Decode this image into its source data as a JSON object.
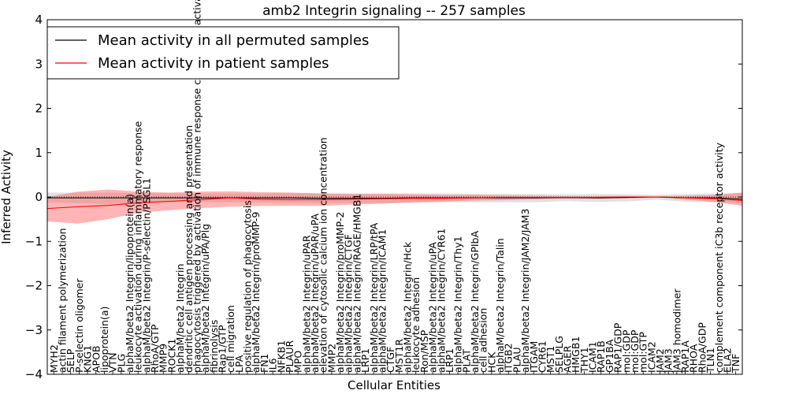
{
  "chart_data": {
    "type": "line",
    "title": "amb2 Integrin signaling -- 257 samples",
    "xlabel": "Cellular Entities",
    "ylabel": "Inferred Activity",
    "ylim": [
      -4,
      4
    ],
    "yticks": [
      -4,
      -3,
      -2,
      -1,
      0,
      1,
      2,
      3,
      4
    ],
    "xlim": [
      0,
      114
    ],
    "grid": false,
    "legend_position": "top-left",
    "legend": [
      {
        "label": "Mean activity in all permuted samples",
        "color": "#000000"
      },
      {
        "label": "Mean activity in patient samples",
        "color": "#ff0000"
      }
    ],
    "categories": [
      "MYH2",
      "actin filament polymerization",
      "SELP",
      "P-selectin oligomer",
      "KNG1",
      "APOB",
      "lipoprotein(a)",
      "VTN",
      "PLG",
      "alphaM/beta2 Integrin/lipoprotein(a)",
      "leukocyte activation during inflammatory response",
      "alphaM/beta2 Integrin/P-selectin/PSGL1",
      "RhoA/GTP",
      "MMP9",
      "ROCK1",
      "alphaM/beta2 Integrin",
      "dendritic cell antigen processing and presentation",
      "phagocytosis triggered by activation of immune response cell surface activating receptor",
      "alphaM/beta2 Integrin/uPA/Plg",
      "fibrinolysis",
      "Rap1/GTP",
      "cell migration",
      "LPA",
      "positive regulation of phagocytosis",
      "alphaM/beta2 Integrin/proMMP-9",
      "FN1",
      "IL6",
      "NFKB1",
      "PLAUR",
      "MPO",
      "alphaM/beta2 Integrin/uPAR",
      "alphaM/beta2 Integrin/uPAR/uPA",
      "elevation of cytosolic calcium ion concentration",
      "MMP2",
      "alphaM/beta2 Integrin/proMMP-2",
      "alphaM/beta2 Integrin/CTGF",
      "alphaM/beta2 Integrin/RAGE/HMGB1",
      "LRP1",
      "alphaM/beta2 Integrin/LRP/tPA",
      "alphaM/beta2 Integrin/ICAM1",
      "CTGF",
      "MST1R",
      "alphaM/beta2 Integrin/Hck",
      "leukocyte adhesion",
      "Ron/MSP",
      "alphaM/beta2 Integrin/uPA",
      "alphaM/beta2 Integrin/CYR61",
      "LRP1",
      "alphaM/beta2 Integrin/Thy1",
      "PLAT",
      "alphaM/beta2 Integrin/GPIbA",
      "cell adhesion",
      "HCK",
      "alphaM/beta2 Integrin/Talin",
      "ITGB2",
      "PLAU",
      "alphaM/beta2 Integrin/JAM2/JAM3",
      "ITGAM",
      "CYR61",
      "MST1",
      "SELPLG",
      "AGER",
      "HMGB1",
      "THY1",
      "ICAM1",
      "RAP1B",
      "GP1BA",
      "RAP1/GDP",
      "mol:GDP",
      "mol:GDP",
      "mol:GTP",
      "ICAM2",
      "JAM2",
      "JAM3",
      "JAM3 homodimer",
      "RAP1A",
      "RHOA",
      "RhoA/GDP",
      "TLN1",
      "complement component iC3b receptor activity",
      "ELA2",
      "TNF"
    ],
    "series": [
      {
        "name": "Mean activity in all permuted samples",
        "color": "#000000",
        "x": [
          0,
          5,
          10,
          15,
          20,
          25,
          30,
          35,
          40,
          45,
          50,
          55,
          60,
          65,
          70,
          75,
          80,
          85,
          90,
          95,
          100,
          105,
          110,
          114
        ],
        "mean": [
          -0.02,
          -0.02,
          -0.02,
          -0.02,
          -0.02,
          -0.02,
          -0.02,
          -0.02,
          -0.02,
          -0.03,
          -0.03,
          -0.03,
          -0.02,
          -0.02,
          -0.02,
          -0.02,
          -0.02,
          -0.01,
          -0.02,
          -0.01,
          0.0,
          -0.02,
          -0.02,
          -0.05
        ],
        "lower": [
          -0.12,
          -0.14,
          -0.16,
          -0.13,
          -0.12,
          -0.11,
          -0.12,
          -0.12,
          -0.13,
          -0.14,
          -0.13,
          -0.13,
          -0.13,
          -0.12,
          -0.12,
          -0.12,
          -0.12,
          -0.09,
          -0.11,
          -0.1,
          -0.06,
          -0.11,
          -0.12,
          -0.15
        ],
        "upper": [
          0.1,
          0.1,
          0.1,
          0.09,
          0.09,
          0.08,
          0.08,
          0.08,
          0.09,
          0.08,
          0.08,
          0.08,
          0.08,
          0.08,
          0.07,
          0.07,
          0.07,
          0.06,
          0.07,
          0.06,
          0.05,
          0.07,
          0.08,
          0.09
        ]
      },
      {
        "name": "Mean activity in patient samples",
        "color": "#ff0000",
        "x": [
          0,
          5,
          10,
          15,
          20,
          25,
          30,
          35,
          40,
          45,
          50,
          55,
          60,
          65,
          70,
          75,
          80,
          85,
          90,
          95,
          100,
          105,
          110,
          114
        ],
        "mean": [
          -0.26,
          -0.22,
          -0.19,
          -0.13,
          -0.1,
          -0.06,
          -0.02,
          -0.05,
          -0.06,
          -0.06,
          -0.05,
          -0.04,
          -0.03,
          -0.03,
          -0.02,
          -0.01,
          -0.01,
          -0.01,
          -0.01,
          0.0,
          0.0,
          -0.02,
          -0.04,
          -0.08
        ],
        "lower": [
          -0.55,
          -0.6,
          -0.5,
          -0.35,
          -0.3,
          -0.25,
          -0.22,
          -0.2,
          -0.2,
          -0.2,
          -0.17,
          -0.15,
          -0.12,
          -0.1,
          -0.08,
          -0.07,
          -0.05,
          -0.04,
          -0.04,
          -0.03,
          -0.01,
          -0.06,
          -0.12,
          -0.2
        ],
        "upper": [
          0.0,
          0.12,
          0.17,
          0.12,
          0.1,
          0.12,
          0.13,
          0.11,
          0.1,
          0.08,
          0.07,
          0.07,
          0.06,
          0.05,
          0.05,
          0.04,
          0.03,
          0.02,
          0.02,
          0.02,
          0.01,
          0.03,
          0.05,
          0.1
        ]
      }
    ]
  }
}
